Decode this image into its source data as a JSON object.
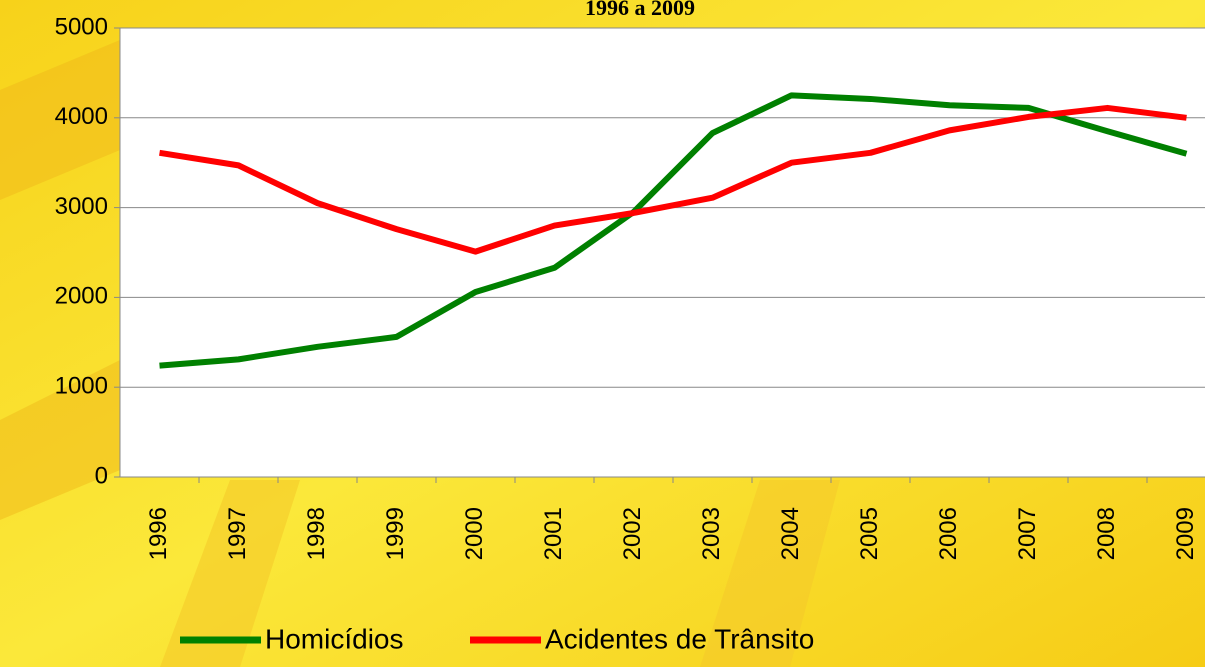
{
  "chart_data": {
    "type": "line",
    "title": "1996 a 2009",
    "categories": [
      "1996",
      "1997",
      "1998",
      "1999",
      "2000",
      "2001",
      "2002",
      "2003",
      "2004",
      "2005",
      "2006",
      "2007",
      "2008",
      "2009"
    ],
    "series": [
      {
        "name": "Homicídios",
        "color": "#008000",
        "values": [
          1240,
          1310,
          1450,
          1560,
          2060,
          2330,
          2950,
          3830,
          4250,
          4210,
          4140,
          4110,
          3850,
          3600
        ]
      },
      {
        "name": "Acidentes de Trânsito",
        "color": "#ff0000",
        "values": [
          3610,
          3470,
          3050,
          2760,
          2510,
          2800,
          2940,
          3110,
          3500,
          3610,
          3860,
          4010,
          4110,
          4000
        ]
      }
    ],
    "ylim": [
      0,
      5000
    ],
    "yticks": [
      0,
      1000,
      2000,
      3000,
      4000,
      5000
    ],
    "grid": true,
    "legend": "bottom"
  }
}
